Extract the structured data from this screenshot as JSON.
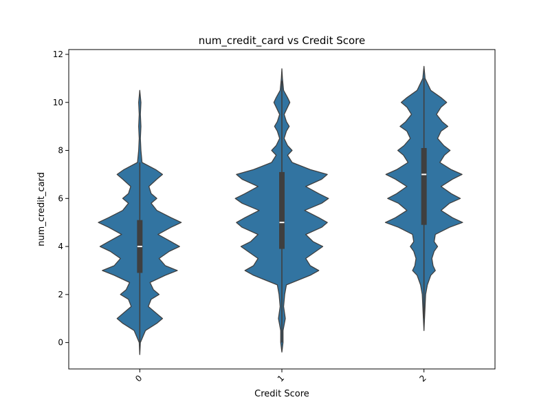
{
  "chart_data": {
    "type": "violin",
    "title": "num_credit_card vs Credit Score",
    "xlabel": "Credit Score",
    "ylabel": "num_credit_card",
    "categories": [
      "0",
      "1",
      "2"
    ],
    "ylim": [
      -1.1,
      12.2
    ],
    "yticks": [
      0,
      2,
      4,
      6,
      8,
      10,
      12
    ],
    "grid": false,
    "legend": "none",
    "colors": {
      "violin_fill": "#3274a1",
      "violin_edge": "#3f3f3f",
      "box": "#3f3f3f",
      "median": "#ffffff"
    },
    "violins": [
      {
        "category": "0",
        "range": [
          -0.5,
          10.5
        ],
        "quartiles": [
          2.9,
          4.0,
          5.1
        ],
        "whiskers": [
          0.0,
          7.5
        ],
        "density": [
          [
            -0.5,
            0.0
          ],
          [
            0.0,
            0.01
          ],
          [
            0.5,
            0.1
          ],
          [
            0.8,
            0.3
          ],
          [
            1.0,
            0.4
          ],
          [
            1.2,
            0.3
          ],
          [
            1.5,
            0.15
          ],
          [
            1.8,
            0.2
          ],
          [
            2.0,
            0.34
          ],
          [
            2.2,
            0.24
          ],
          [
            2.5,
            0.18
          ],
          [
            2.8,
            0.45
          ],
          [
            3.0,
            0.66
          ],
          [
            3.2,
            0.45
          ],
          [
            3.5,
            0.34
          ],
          [
            3.8,
            0.52
          ],
          [
            4.0,
            0.7
          ],
          [
            4.2,
            0.55
          ],
          [
            4.5,
            0.32
          ],
          [
            4.8,
            0.55
          ],
          [
            5.0,
            0.73
          ],
          [
            5.2,
            0.55
          ],
          [
            5.5,
            0.3
          ],
          [
            5.8,
            0.2
          ],
          [
            6.0,
            0.3
          ],
          [
            6.2,
            0.2
          ],
          [
            6.5,
            0.16
          ],
          [
            6.8,
            0.3
          ],
          [
            7.0,
            0.4
          ],
          [
            7.2,
            0.28
          ],
          [
            7.5,
            0.04
          ],
          [
            8.0,
            0.02
          ],
          [
            8.5,
            0.01
          ],
          [
            9.0,
            0.02
          ],
          [
            9.5,
            0.01
          ],
          [
            10.0,
            0.02
          ],
          [
            10.5,
            0.0
          ]
        ]
      },
      {
        "category": "1",
        "range": [
          -0.4,
          11.4
        ],
        "quartiles": [
          3.9,
          5.0,
          7.1
        ],
        "whiskers": [
          0.0,
          10.9
        ],
        "density": [
          [
            -0.4,
            0.0
          ],
          [
            0.0,
            0.02
          ],
          [
            0.5,
            0.02
          ],
          [
            1.0,
            0.06
          ],
          [
            1.5,
            0.03
          ],
          [
            2.0,
            0.05
          ],
          [
            2.4,
            0.08
          ],
          [
            2.8,
            0.5
          ],
          [
            3.0,
            0.65
          ],
          [
            3.2,
            0.5
          ],
          [
            3.5,
            0.42
          ],
          [
            3.8,
            0.6
          ],
          [
            4.0,
            0.72
          ],
          [
            4.2,
            0.55
          ],
          [
            4.5,
            0.42
          ],
          [
            4.8,
            0.7
          ],
          [
            5.0,
            0.8
          ],
          [
            5.2,
            0.65
          ],
          [
            5.5,
            0.4
          ],
          [
            5.8,
            0.7
          ],
          [
            6.0,
            0.82
          ],
          [
            6.2,
            0.65
          ],
          [
            6.5,
            0.42
          ],
          [
            6.8,
            0.7
          ],
          [
            7.0,
            0.8
          ],
          [
            7.2,
            0.5
          ],
          [
            7.5,
            0.18
          ],
          [
            7.8,
            0.1
          ],
          [
            8.0,
            0.18
          ],
          [
            8.2,
            0.1
          ],
          [
            8.5,
            0.04
          ],
          [
            8.8,
            0.08
          ],
          [
            9.0,
            0.13
          ],
          [
            9.2,
            0.08
          ],
          [
            9.5,
            0.04
          ],
          [
            9.8,
            0.1
          ],
          [
            10.0,
            0.14
          ],
          [
            10.2,
            0.1
          ],
          [
            10.5,
            0.03
          ],
          [
            11.0,
            0.01
          ],
          [
            11.4,
            0.0
          ]
        ]
      },
      {
        "category": "2",
        "range": [
          0.5,
          11.5
        ],
        "quartiles": [
          4.9,
          7.0,
          8.1
        ],
        "whiskers": [
          1.0,
          11.0
        ],
        "density": [
          [
            0.5,
            0.0
          ],
          [
            1.0,
            0.01
          ],
          [
            1.5,
            0.02
          ],
          [
            2.0,
            0.03
          ],
          [
            2.4,
            0.06
          ],
          [
            2.8,
            0.12
          ],
          [
            3.0,
            0.2
          ],
          [
            3.2,
            0.16
          ],
          [
            3.5,
            0.14
          ],
          [
            3.8,
            0.18
          ],
          [
            4.0,
            0.24
          ],
          [
            4.2,
            0.18
          ],
          [
            4.5,
            0.2
          ],
          [
            4.8,
            0.45
          ],
          [
            5.0,
            0.68
          ],
          [
            5.2,
            0.5
          ],
          [
            5.5,
            0.3
          ],
          [
            5.8,
            0.45
          ],
          [
            6.0,
            0.64
          ],
          [
            6.2,
            0.48
          ],
          [
            6.5,
            0.3
          ],
          [
            6.8,
            0.5
          ],
          [
            7.0,
            0.67
          ],
          [
            7.2,
            0.48
          ],
          [
            7.5,
            0.28
          ],
          [
            7.8,
            0.36
          ],
          [
            8.0,
            0.46
          ],
          [
            8.2,
            0.35
          ],
          [
            8.5,
            0.24
          ],
          [
            8.8,
            0.3
          ],
          [
            9.0,
            0.42
          ],
          [
            9.2,
            0.32
          ],
          [
            9.5,
            0.22
          ],
          [
            9.8,
            0.3
          ],
          [
            10.0,
            0.4
          ],
          [
            10.2,
            0.3
          ],
          [
            10.5,
            0.12
          ],
          [
            11.0,
            0.02
          ],
          [
            11.5,
            0.0
          ]
        ]
      }
    ]
  }
}
